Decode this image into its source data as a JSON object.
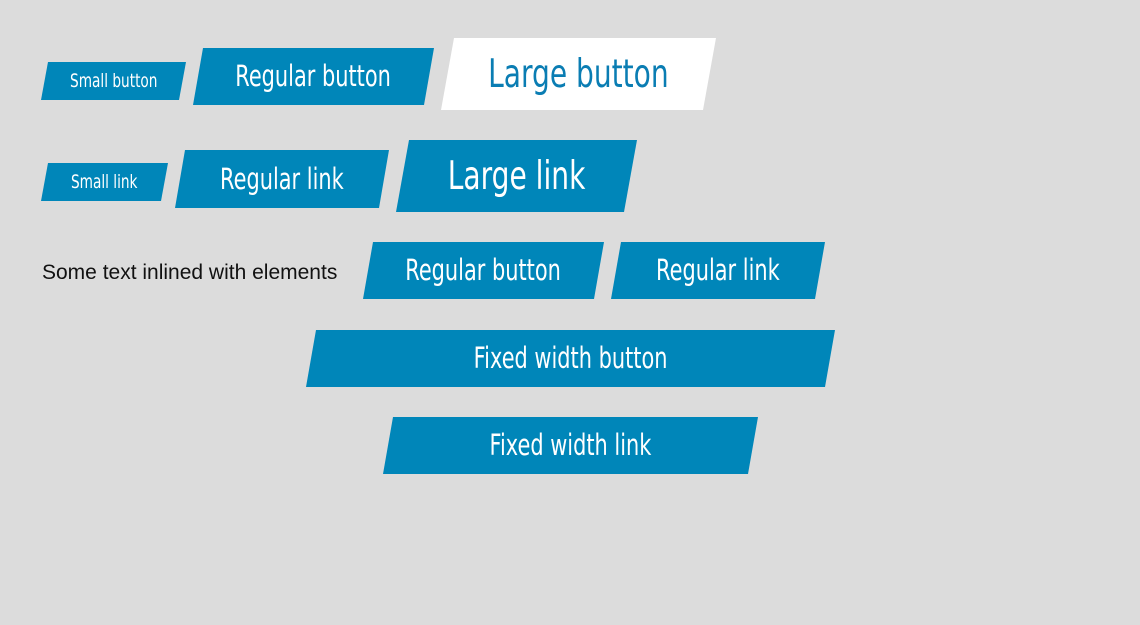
{
  "colors": {
    "background": "#dcdcdc",
    "primary": "#0086b9",
    "on_primary": "#ffffff",
    "highlight_bg": "#ffffff",
    "highlight_text": "#0a7db3"
  },
  "buttons_row": {
    "small": "Small button",
    "regular": "Regular button",
    "large": "Large button"
  },
  "links_row": {
    "small": "Small link",
    "regular": "Regular link",
    "large": "Large link"
  },
  "inline_row": {
    "text": "Some text inlined with elements",
    "button": "Regular button",
    "link": "Regular link"
  },
  "fixed": {
    "button": "Fixed width button",
    "link": "Fixed width link"
  }
}
